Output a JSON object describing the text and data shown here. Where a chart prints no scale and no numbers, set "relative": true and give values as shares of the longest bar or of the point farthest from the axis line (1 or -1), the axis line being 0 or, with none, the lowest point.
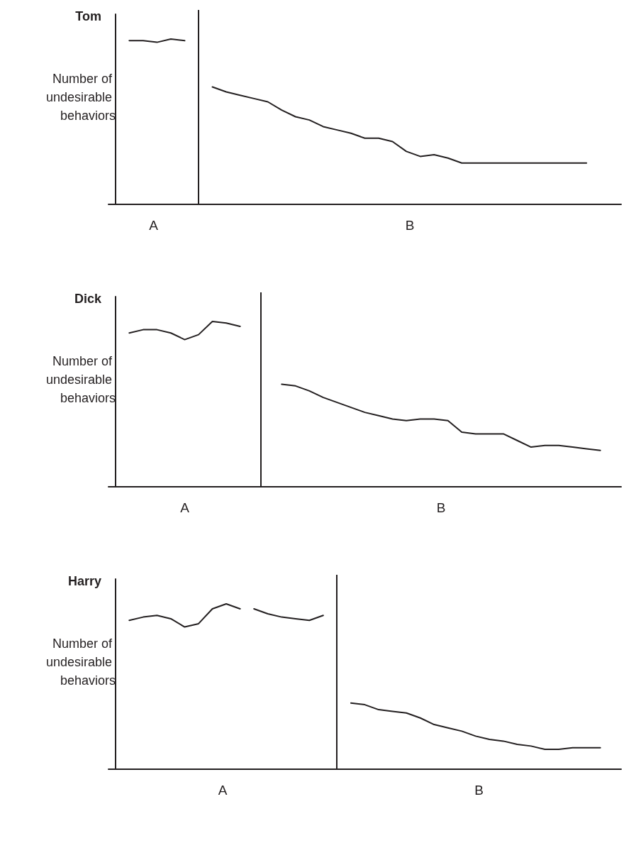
{
  "chart_data": [
    {
      "type": "line",
      "title": "Tom",
      "ylabel": "Number of undesirable behaviors",
      "relative": true,
      "marker": "none",
      "line_style": "solid",
      "categories": [
        null,
        null,
        null,
        null,
        null,
        null,
        null,
        null,
        null,
        null,
        null,
        null,
        null,
        null,
        null,
        null,
        null,
        null,
        null,
        null,
        null,
        null,
        null,
        null,
        null,
        null,
        null,
        null,
        null,
        null,
        null,
        null,
        null,
        null,
        null,
        null,
        null
      ],
      "series": [
        {
          "color": "#231f20",
          "values": [
            null,
            0.99,
            0.99,
            0.98,
            1.0,
            0.99,
            null,
            null,
            null,
            null,
            null,
            null,
            null,
            null,
            null,
            null,
            null,
            null,
            null,
            null,
            null,
            null,
            null,
            null,
            null,
            null,
            null,
            null,
            null,
            null,
            null,
            null,
            null,
            null,
            null,
            null,
            null
          ]
        },
        {
          "color": "#231f20",
          "values": [
            null,
            null,
            null,
            null,
            null,
            null,
            null,
            0.71,
            0.68,
            0.66,
            0.64,
            0.62,
            0.57,
            0.53,
            0.51,
            0.47,
            0.45,
            0.43,
            0.4,
            0.4,
            0.38,
            0.32,
            0.29,
            0.3,
            0.28,
            0.25,
            0.25,
            0.25,
            0.25,
            0.25,
            0.25,
            0.25,
            0.25,
            0.25,
            0.25,
            null,
            null
          ]
        }
      ],
      "annotations": [
        "A",
        "B"
      ]
    },
    {
      "type": "line",
      "title": "Dick",
      "ylabel": "Number of undesirable behaviors",
      "relative": true,
      "marker": "none",
      "line_style": "solid",
      "categories": [
        null,
        null,
        null,
        null,
        null,
        null,
        null,
        null,
        null,
        null,
        null,
        null,
        null,
        null,
        null,
        null,
        null,
        null,
        null,
        null,
        null,
        null,
        null,
        null,
        null,
        null,
        null,
        null,
        null,
        null,
        null,
        null,
        null,
        null,
        null,
        null,
        null
      ],
      "series": [
        {
          "color": "#231f20",
          "values": [
            null,
            0.93,
            0.95,
            0.95,
            0.93,
            0.89,
            0.92,
            1.0,
            0.99,
            0.97,
            null,
            null,
            null,
            null,
            null,
            null,
            null,
            null,
            null,
            null,
            null,
            null,
            null,
            null,
            null,
            null,
            null,
            null,
            null,
            null,
            null,
            null,
            null,
            null,
            null,
            null,
            null
          ]
        },
        {
          "color": "#231f20",
          "values": [
            null,
            null,
            null,
            null,
            null,
            null,
            null,
            null,
            null,
            null,
            null,
            null,
            0.62,
            0.61,
            0.58,
            0.54,
            0.51,
            0.48,
            0.45,
            0.43,
            0.41,
            0.4,
            0.41,
            0.41,
            0.4,
            0.33,
            0.32,
            0.32,
            0.32,
            0.28,
            0.24,
            0.25,
            0.25,
            0.24,
            0.23,
            0.22,
            null
          ]
        }
      ],
      "annotations": [
        "A",
        "B"
      ]
    },
    {
      "type": "line",
      "title": "Harry",
      "ylabel": "Number of undesirable behaviors",
      "relative": true,
      "marker": "none",
      "line_style": "solid",
      "categories": [
        null,
        null,
        null,
        null,
        null,
        null,
        null,
        null,
        null,
        null,
        null,
        null,
        null,
        null,
        null,
        null,
        null,
        null,
        null,
        null,
        null,
        null,
        null,
        null,
        null,
        null,
        null,
        null,
        null,
        null,
        null,
        null,
        null,
        null,
        null,
        null,
        null
      ],
      "series": [
        {
          "color": "#231f20",
          "values": [
            null,
            0.9,
            0.92,
            0.93,
            0.91,
            0.86,
            0.88,
            0.97,
            1.0,
            0.97,
            null,
            null,
            null,
            null,
            null,
            null,
            null,
            null,
            null,
            null,
            null,
            null,
            null,
            null,
            null,
            null,
            null,
            null,
            null,
            null,
            null,
            null,
            null,
            null,
            null,
            null,
            null
          ]
        },
        {
          "color": "#231f20",
          "values": [
            null,
            null,
            null,
            null,
            null,
            null,
            null,
            null,
            null,
            null,
            0.97,
            0.94,
            0.92,
            0.91,
            0.9,
            0.93,
            null,
            null,
            null,
            null,
            null,
            null,
            null,
            null,
            null,
            null,
            null,
            null,
            null,
            null,
            null,
            null,
            null,
            null,
            null,
            null,
            null
          ]
        },
        {
          "color": "#231f20",
          "values": [
            null,
            null,
            null,
            null,
            null,
            null,
            null,
            null,
            null,
            null,
            null,
            null,
            null,
            null,
            null,
            null,
            null,
            0.4,
            0.39,
            0.36,
            0.35,
            0.34,
            0.31,
            0.27,
            0.25,
            0.23,
            0.2,
            0.18,
            0.17,
            0.15,
            0.14,
            0.12,
            0.12,
            0.13,
            0.13,
            0.13,
            null
          ]
        }
      ],
      "annotations": [
        "A",
        "B"
      ]
    }
  ]
}
